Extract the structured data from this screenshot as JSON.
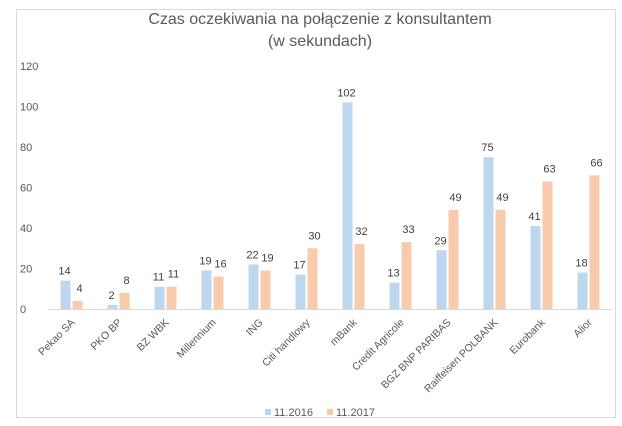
{
  "chart_data": {
    "type": "bar",
    "title": "Czas oczekiwania na połączenie z konsultantem",
    "subtitle": "(w sekundach)",
    "xlabel": "",
    "ylabel": "",
    "ylim": [
      0,
      120
    ],
    "yticks": [
      "0",
      "20",
      "40",
      "60",
      "80",
      "100",
      "120"
    ],
    "grid": false,
    "legend_position": "bottom",
    "categories": [
      "Pekao SA",
      "PKO BP",
      "BZ WBK",
      "Millennium",
      "ING",
      "Citi handlowy",
      "mBank",
      "Credit Agricole",
      "BGZ BNP PARIBAS",
      "Raiffeisen POLBANK",
      "Eurobank",
      "Alior"
    ],
    "series": [
      {
        "name": "11.2016",
        "color": "#bdd7ee",
        "values": [
          14,
          2,
          11,
          19,
          22,
          17,
          102,
          13,
          29,
          75,
          41,
          18
        ]
      },
      {
        "name": "11.2017",
        "color": "#f8cbad",
        "values": [
          4,
          8,
          11,
          16,
          19,
          30,
          32,
          33,
          49,
          49,
          63,
          66
        ]
      }
    ]
  }
}
